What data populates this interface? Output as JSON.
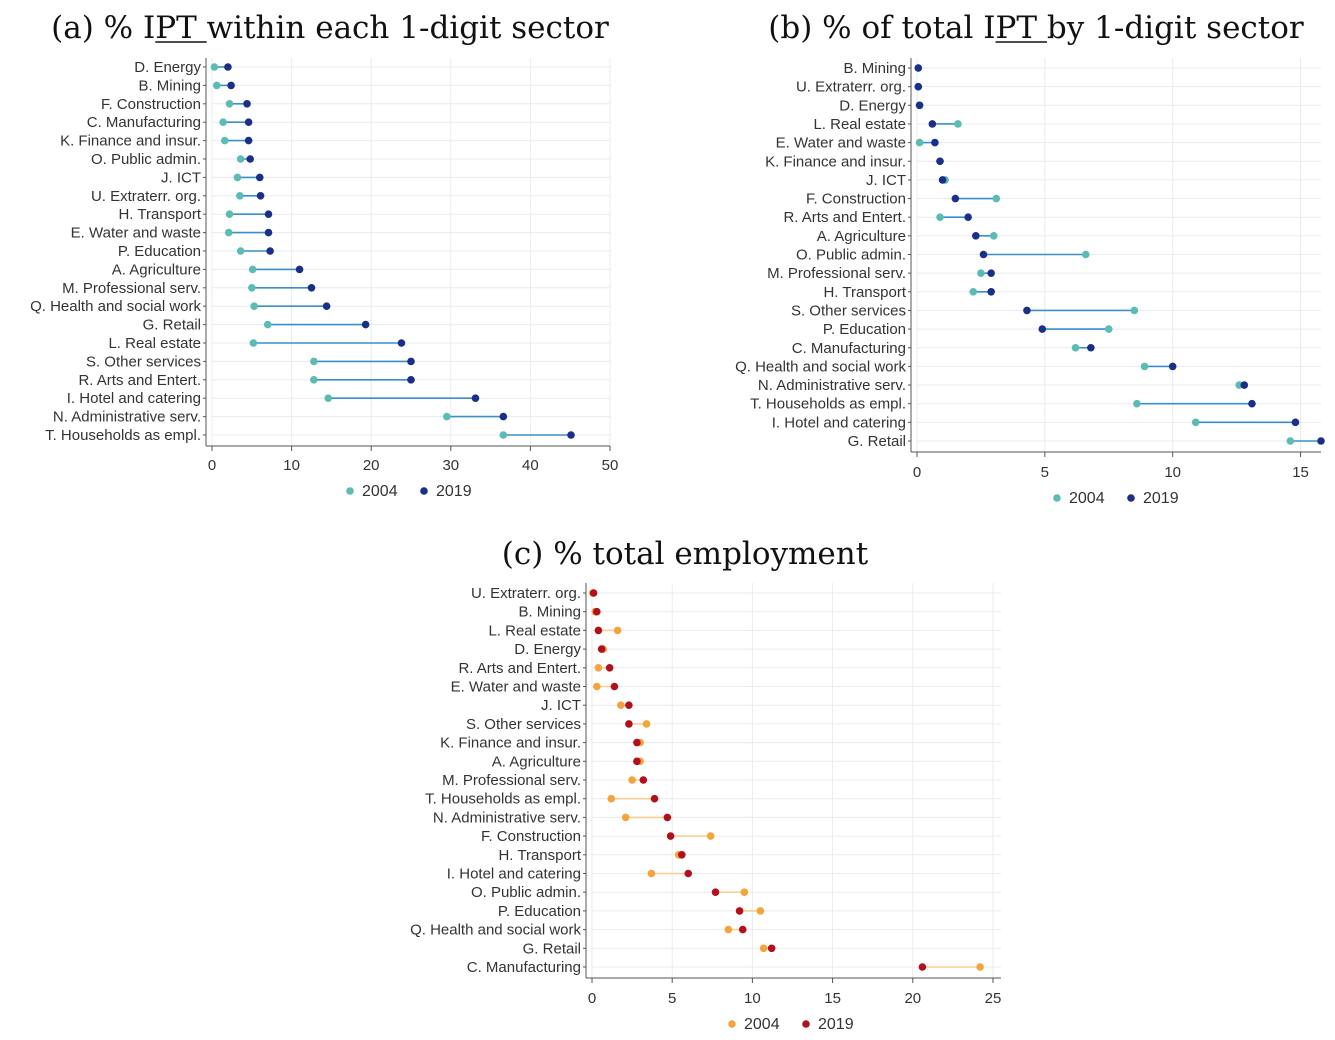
{
  "chart_data": [
    {
      "type": "dumbbell",
      "title": "(a)  % IPT within each 1-digit sector",
      "title_underline": "IPT",
      "xlim": [
        0,
        50
      ],
      "xticks": [
        0,
        10,
        20,
        30,
        40,
        50
      ],
      "grid": true,
      "legend_position": "bottom",
      "series": [
        {
          "name": "2004",
          "color": "#5bbcb3"
        },
        {
          "name": "2019",
          "color": "#1a2f88"
        }
      ],
      "connector_color": "#3a8fca",
      "categories": [
        "D. Energy",
        "B. Mining",
        "F. Construction",
        "C. Manufacturing",
        "K. Finance and insur.",
        "O. Public admin.",
        "J. ICT",
        "U. Extraterr. org.",
        "H. Transport",
        "E. Water and waste",
        "P. Education",
        "A. Agriculture",
        "M. Professional serv.",
        "Q. Health and social work",
        "G. Retail",
        "L. Real estate",
        "S. Other services",
        "R. Arts and Entert.",
        "I. Hotel and catering",
        "N. Administrative serv.",
        "T. Households as empl."
      ],
      "values_2004": [
        0.3,
        0.6,
        2.2,
        1.4,
        1.6,
        3.6,
        3.2,
        3.5,
        2.2,
        2.1,
        3.6,
        5.1,
        5.0,
        5.3,
        7.0,
        5.2,
        12.8,
        12.8,
        14.6,
        29.5,
        36.6
      ],
      "values_2019": [
        2.0,
        2.4,
        4.4,
        4.6,
        4.6,
        4.8,
        6.0,
        6.1,
        7.1,
        7.1,
        7.3,
        11.0,
        12.5,
        14.4,
        19.3,
        23.8,
        25.0,
        25.0,
        33.1,
        36.6,
        45.1
      ]
    },
    {
      "type": "dumbbell",
      "title": "(b)  % of total IPT by 1-digit sector",
      "title_underline": "IPT",
      "xlim": [
        0,
        15.8
      ],
      "xticks": [
        0,
        5,
        10,
        15
      ],
      "grid": true,
      "legend_position": "bottom",
      "series": [
        {
          "name": "2004",
          "color": "#5bbcb3"
        },
        {
          "name": "2019",
          "color": "#1a2f88"
        }
      ],
      "connector_color": "#3a8fca",
      "categories": [
        "B. Mining",
        "U. Extraterr. org.",
        "D. Energy",
        "L. Real estate",
        "E. Water and waste",
        "K. Finance and insur.",
        "J. ICT",
        "F. Construction",
        "R. Arts and Entert.",
        "A. Agriculture",
        "O. Public admin.",
        "M. Professional serv.",
        "H. Transport",
        "S. Other services",
        "P. Education",
        "C. Manufacturing",
        "Q. Health and social work",
        "N. Administrative serv.",
        "T. Households as empl.",
        "I. Hotel and catering",
        "G. Retail"
      ],
      "values_2004": [
        0.05,
        0.05,
        0.1,
        1.6,
        0.1,
        0.9,
        1.1,
        3.1,
        0.9,
        3.0,
        6.6,
        2.5,
        2.2,
        8.5,
        7.5,
        6.2,
        8.9,
        12.6,
        8.6,
        10.9,
        14.6
      ],
      "values_2019": [
        0.05,
        0.05,
        0.1,
        0.6,
        0.7,
        0.9,
        1.0,
        1.5,
        2.0,
        2.3,
        2.6,
        2.9,
        2.9,
        4.3,
        4.9,
        6.8,
        10.0,
        12.8,
        13.1,
        14.8,
        15.8
      ]
    },
    {
      "type": "dumbbell",
      "title": "(c)  % total employment",
      "xlim": [
        0,
        25.5
      ],
      "xticks": [
        0,
        5,
        10,
        15,
        20,
        25
      ],
      "grid": true,
      "legend_position": "bottom",
      "series": [
        {
          "name": "2004",
          "color": "#f5a33c"
        },
        {
          "name": "2019",
          "color": "#b3101e"
        }
      ],
      "connector_color": "#f7cf92",
      "categories": [
        "U. Extraterr. org.",
        "B. Mining",
        "L. Real estate",
        "D. Energy",
        "R. Arts and Entert.",
        "E. Water and waste",
        "J. ICT",
        "S. Other services",
        "K. Finance and insur.",
        "A. Agriculture",
        "M. Professional serv.",
        "T. Households as empl.",
        "N. Administrative serv.",
        "F. Construction",
        "H. Transport",
        "I. Hotel and catering",
        "O. Public admin.",
        "P. Education",
        "Q. Health and social work",
        "G. Retail",
        "C. Manufacturing"
      ],
      "values_2004": [
        0.05,
        0.2,
        1.6,
        0.7,
        0.4,
        0.3,
        1.8,
        3.4,
        3.0,
        3.0,
        2.5,
        1.2,
        2.1,
        7.4,
        5.4,
        3.7,
        9.5,
        10.5,
        8.5,
        10.7,
        24.2
      ],
      "values_2019": [
        0.1,
        0.3,
        0.4,
        0.6,
        1.1,
        1.4,
        2.3,
        2.3,
        2.8,
        2.8,
        3.2,
        3.9,
        4.7,
        4.9,
        5.6,
        6.0,
        7.7,
        9.2,
        9.4,
        11.2,
        20.6
      ]
    }
  ]
}
